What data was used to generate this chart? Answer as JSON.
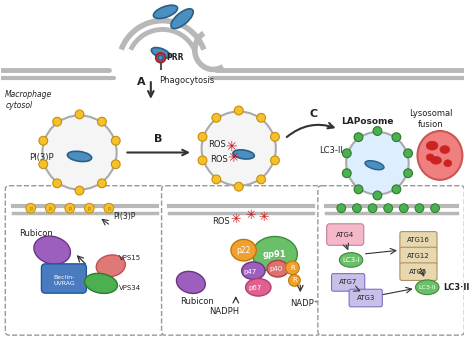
{
  "background_color": "#ffffff",
  "membrane_color": "#b8b8b8",
  "pathogen_color": "#4a8fc0",
  "pathogen_border": "#2a5f8a",
  "prr_color_outer": "#c85050",
  "prr_color_inner": "#4a8fc0",
  "label_A": "A",
  "label_B": "B",
  "label_C": "C",
  "text_phagocytosis": "Phagocytosis",
  "text_laposome": "LAPosome",
  "text_lysosomal_fusion": "Lysosomal\nfusion",
  "text_macrophage": "Macrophage\ncytosol",
  "text_PRR": "PRR",
  "text_PI3P_top": "PI(3)P",
  "text_LC3_II_mid": "LC3-II",
  "text_ROS1": "ROS",
  "text_ROS2": "ROS",
  "text_Rubicon1": "Rubicon",
  "text_PI3P2": "PI(3)P",
  "text_Beclin": "Beclin-\nUVRAG",
  "text_VPS15": "VPS15",
  "text_VPS34": "VPS34",
  "text_ROS_box": "ROS",
  "text_p22": "p22",
  "text_gp91": "gp91",
  "text_p47": "p47",
  "text_p40": "p40",
  "text_p67": "p67",
  "text_R": "R",
  "text_Rubicon2": "Rubicon",
  "text_NADPH": "NADPH",
  "text_NADP": "NADP⁺",
  "text_ATG4": "ATG4",
  "text_ATG16": "ATG16",
  "text_ATG12": "ATG12",
  "text_ATG5": "ATG5",
  "text_ATG7": "ATG7",
  "text_ATG3": "ATG3",
  "text_LC3_I": "LC3-I",
  "text_LC3_II_box": "LC3·II",
  "yellow_dot_color": "#f5c030",
  "yellow_dot_border": "#c89000",
  "green_dot_color": "#4caf50",
  "green_dot_border": "#2d7a30",
  "ros_star_color": "#cc1111",
  "dashed_box_color": "#999999",
  "arrow_color": "#333333",
  "text_color": "#222222",
  "phagosome_face": "#f5f5f5",
  "phagosome_edge": "#aaaaaa",
  "lyso_color": "#f08080",
  "lyso_edge": "#cc5555",
  "lyso_blob_color": "#cc2222",
  "lap_face": "#ddeeff",
  "color_gp91": "#6abf69",
  "color_p22": "#f0a030",
  "color_p47": "#9c5fbd",
  "color_p40": "#e07070",
  "color_p67": "#e06090",
  "color_R": "#f0a030",
  "color_rubicon": "#9c5fbd",
  "color_beclin": "#4a7abf",
  "color_vps15": "#e07878",
  "color_vps34": "#4caf50",
  "color_atg4": "#f5b8c8",
  "color_lc3": "#6abf69",
  "color_atg16": "#e8d8b0",
  "color_atg12": "#e8d8b0",
  "color_atg5": "#e8d8b0",
  "color_atg7": "#c8c0e8",
  "color_atg3": "#c8c0e8"
}
